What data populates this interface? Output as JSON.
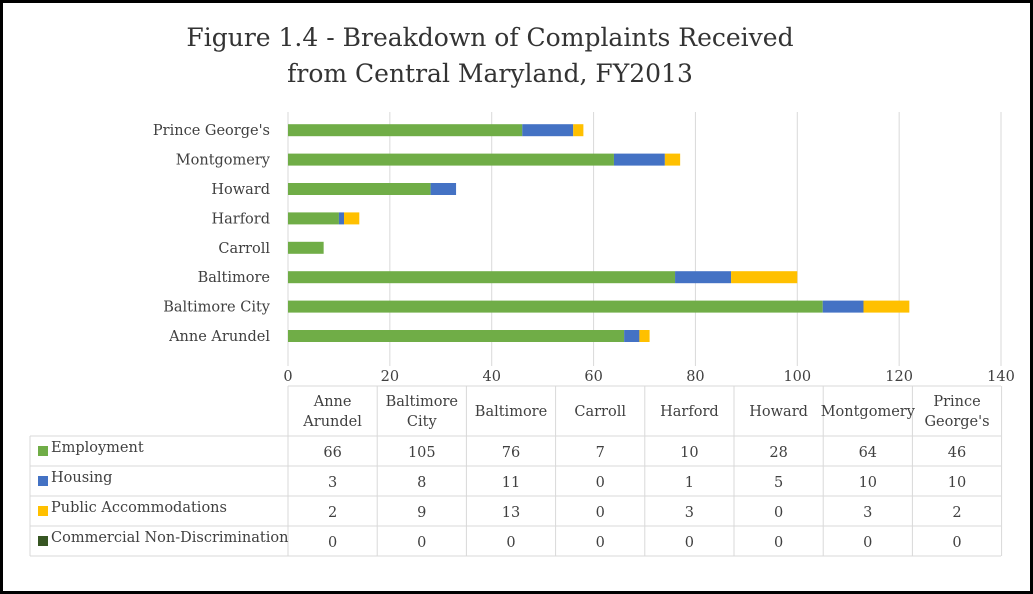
{
  "chart_data": {
    "type": "bar",
    "orientation": "horizontal",
    "stacked": true,
    "title": [
      "Figure 1.4 - Breakdown of Complaints Received",
      "from Central Maryland, FY2013"
    ],
    "categories": [
      "Anne Arundel",
      "Baltimore City",
      "Baltimore",
      "Carroll",
      "Harford",
      "Howard",
      "Montgomery",
      "Prince George's"
    ],
    "table_headers": [
      [
        "Anne",
        "Arundel"
      ],
      [
        "Baltimore",
        "City"
      ],
      [
        "Baltimore"
      ],
      [
        "Carroll"
      ],
      [
        "Harford"
      ],
      [
        "Howard"
      ],
      [
        "Montgomery"
      ],
      [
        "Prince",
        "George's"
      ]
    ],
    "series": [
      {
        "name": "Employment",
        "color": "#70ad47",
        "values": [
          66,
          105,
          76,
          7,
          10,
          28,
          64,
          46
        ]
      },
      {
        "name": "Housing",
        "color": "#4472c4",
        "values": [
          3,
          8,
          11,
          0,
          1,
          5,
          10,
          10
        ]
      },
      {
        "name": "Public Accommodations",
        "color": "#ffc000",
        "values": [
          2,
          9,
          13,
          0,
          3,
          0,
          3,
          2
        ]
      },
      {
        "name": "Commercial Non-Discrimination",
        "color": "#375623",
        "values": [
          0,
          0,
          0,
          0,
          0,
          0,
          0,
          0
        ]
      }
    ],
    "xlim": [
      0,
      140
    ],
    "xticks": [
      0,
      20,
      40,
      60,
      80,
      100,
      120,
      140
    ],
    "grid": true,
    "legend": "data-table"
  }
}
